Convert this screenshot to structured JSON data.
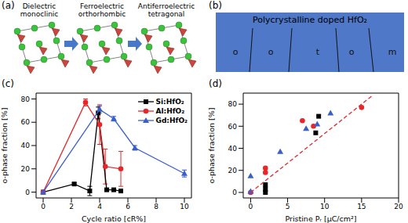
{
  "panels": {
    "a": {
      "label": "(a)",
      "phases": [
        [
          "Dielectric",
          "monoclinic"
        ],
        [
          "Ferroelectric",
          "orthorhombic"
        ],
        [
          "Antiferroelectric",
          "tetragonal"
        ]
      ]
    },
    "b": {
      "label": "(b)",
      "title": "Polycrystalline doped HfO₂",
      "grains": [
        "o",
        "o",
        "t",
        "o",
        "m"
      ]
    }
  },
  "chart_data": [
    {
      "title": "(c)",
      "type": "line",
      "x_label": "Cycle ratio [cR%]",
      "y_label": "o-phase fraction [%]",
      "xlim": [
        -0.5,
        10.5
      ],
      "xticks": [
        0,
        2,
        4,
        6,
        8,
        10
      ],
      "ylim": [
        -5,
        85
      ],
      "yticks": [
        0,
        20,
        40,
        60,
        80
      ],
      "legend": "upper right",
      "series": [
        {
          "name": "Si:HfO₂",
          "color": "#000000",
          "marker": "square",
          "x": [
            0,
            2.2,
            3.3,
            3.9,
            4.5,
            5,
            5.5
          ],
          "values": [
            0,
            7,
            1,
            68,
            2,
            2,
            1
          ],
          "errors": [
            1,
            1,
            4,
            5,
            1,
            1,
            1
          ]
        },
        {
          "name": "Al:HfO₂",
          "color": "#e8262a",
          "marker": "circle",
          "x": [
            0,
            3,
            4,
            4.4,
            5.5
          ],
          "values": [
            0,
            77,
            58,
            22,
            20
          ],
          "errors": [
            1,
            3,
            17,
            15,
            15
          ]
        },
        {
          "name": "Gd:HfO₂",
          "color": "#3a5fcd",
          "marker": "triangle",
          "x": [
            0,
            4,
            5,
            6.5,
            10
          ],
          "values": [
            0,
            71,
            63,
            38,
            16
          ],
          "errors": [
            1,
            3,
            2,
            2,
            3
          ]
        }
      ]
    },
    {
      "title": "(d)",
      "type": "scatter",
      "x_label": "Pristine Pᵣ [μC/cm²]",
      "y_label": "o-phase fraction [%]",
      "xlim": [
        -1,
        20
      ],
      "xticks": [
        0,
        5,
        10,
        15,
        20
      ],
      "ylim": [
        -5,
        90
      ],
      "yticks": [
        0,
        20,
        40,
        60,
        80
      ],
      "series": [
        {
          "color": "#000000",
          "marker": "square",
          "x": [
            2,
            2,
            2,
            8.8,
            9.2
          ],
          "values": [
            0,
            3,
            7,
            54,
            69
          ]
        },
        {
          "color": "#e8262a",
          "marker": "circle",
          "x": [
            0,
            2,
            2,
            7,
            8.5,
            15
          ],
          "values": [
            0,
            18,
            22,
            65,
            60,
            77
          ]
        },
        {
          "color": "#3a5fcd",
          "marker": "triangle",
          "x": [
            0,
            0,
            4,
            7.5,
            9,
            10.8
          ],
          "values": [
            15,
            1,
            37,
            58,
            62,
            72
          ]
        },
        {
          "type": "line",
          "line_style": "dashed",
          "marker": "none",
          "color": "#e8262a",
          "x": [
            0,
            16.5
          ],
          "values": [
            0,
            88
          ]
        }
      ]
    }
  ]
}
